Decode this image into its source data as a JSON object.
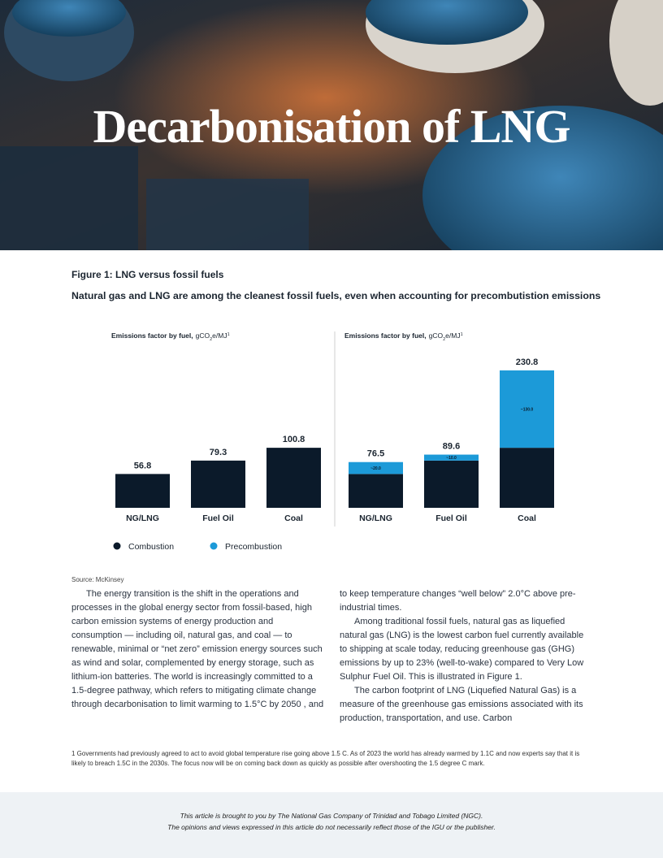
{
  "header": {
    "title": "Decarbonisation of LNG"
  },
  "figure": {
    "caption": "Figure 1: LNG versus fossil fuels",
    "subtitle": "Natural gas and LNG are among the cleanest fossil fuels, even when accounting for precombutistion emissions",
    "source": "Source: McKinsey"
  },
  "chart_data": [
    {
      "type": "bar",
      "y_label_parts": [
        "Emissions factor by fuel,",
        "gCO",
        "2",
        "e/MJ",
        "1"
      ],
      "categories": [
        "NG/LNG",
        "Fuel Oil",
        "Coal"
      ],
      "series": [
        {
          "color": "#0b1a2a",
          "values": [
            56.8,
            79.3,
            100.8
          ]
        }
      ]
    },
    {
      "type": "stacked_bar",
      "y_label_parts": [
        "Emissions factor by fuel,",
        "gCO",
        "2",
        "e/MJ",
        "1"
      ],
      "categories": [
        "NG/LNG",
        "Fuel Oil",
        "Coal"
      ],
      "series": [
        {
          "name": "Combustion",
          "color": "#0b1a2a",
          "values": [
            56.8,
            79.3,
            100.8
          ]
        },
        {
          "name": "Precombustion",
          "color": "#1c9ad8",
          "values": [
            20.0,
            10.0,
            130.0
          ],
          "value_labels": [
            "~20.0",
            "~10.0",
            "~130.0"
          ]
        }
      ],
      "totals": [
        76.5,
        89.6,
        230.8
      ]
    }
  ],
  "body": {
    "paragraphs": [
      "The energy transition is the shift in the operations and processes in the global energy sector from fossil-based, high carbon emission systems of energy production and consumption — including oil, natural gas, and coal — to renewable, minimal or “net zero” emission energy sources such as wind and solar, complemented by energy storage, such as lithium-ion batteries. The world is increasingly committed to a 1.5-degree pathway, which refers to mitigating climate change through decarbonisation to limit warming to 1.5°C by 2050 , and to keep temperature changes “well below” 2.0°C above pre-industrial times.",
      "Among traditional fossil fuels, natural gas as liquefied natural gas (LNG) is the lowest carbon fuel currently available to shipping at scale today, reducing greenhouse gas (GHG) emissions by up to 23% (well-to-wake) compared to Very Low Sulphur Fuel Oil. This is illustrated in Figure 1.",
      "The carbon footprint of LNG (Liquefied Natural Gas) is a measure of the greenhouse gas emissions associated with its production, transportation, and use. Carbon"
    ]
  },
  "footnote": "1 Governments had previously agreed to act to avoid global temperature rise going above 1.5 C. As of 2023 the world has already warmed by 1.1C and now experts say that it is likely to breach 1.5C in the 2030s. The focus now will be on coming back down as quickly as possible after overshooting the 1.5 degree C mark.",
  "footer": {
    "lines": [
      "This article is brought to you by The National Gas Company of Trinidad and Tobago Limited (NGC).",
      "The opinions and views expressed in this article do not necessarily reflect those of the IGU or the publisher."
    ]
  }
}
